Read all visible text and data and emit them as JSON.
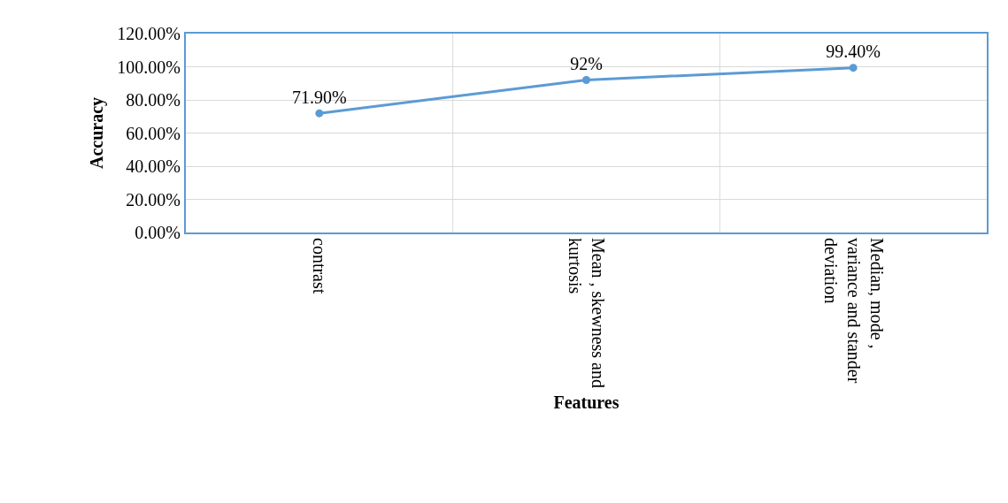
{
  "chart_data": {
    "type": "line",
    "xlabel": "Features",
    "ylabel": "Accuracy",
    "categories": [
      "contrast",
      "Mean , skewness and kurtosis",
      "Median, mode , variance and stander deviation"
    ],
    "series": [
      {
        "color": "#5b9bd5",
        "values": [
          71.9,
          92,
          99.4
        ],
        "value_labels": [
          "71.90%",
          "92%",
          "99.40%"
        ]
      }
    ],
    "ylim": [
      0,
      120
    ],
    "yticks": [
      {
        "value": 0,
        "label": "0.00%"
      },
      {
        "value": 20,
        "label": "20.00%"
      },
      {
        "value": 40,
        "label": "40.00%"
      },
      {
        "value": 60,
        "label": "60.00%"
      },
      {
        "value": 80,
        "label": "80.00%"
      },
      {
        "value": 100,
        "label": "100.00%"
      },
      {
        "value": 120,
        "label": "120.00%"
      }
    ],
    "grid": true,
    "marker": "circle",
    "line_style": "solid"
  }
}
